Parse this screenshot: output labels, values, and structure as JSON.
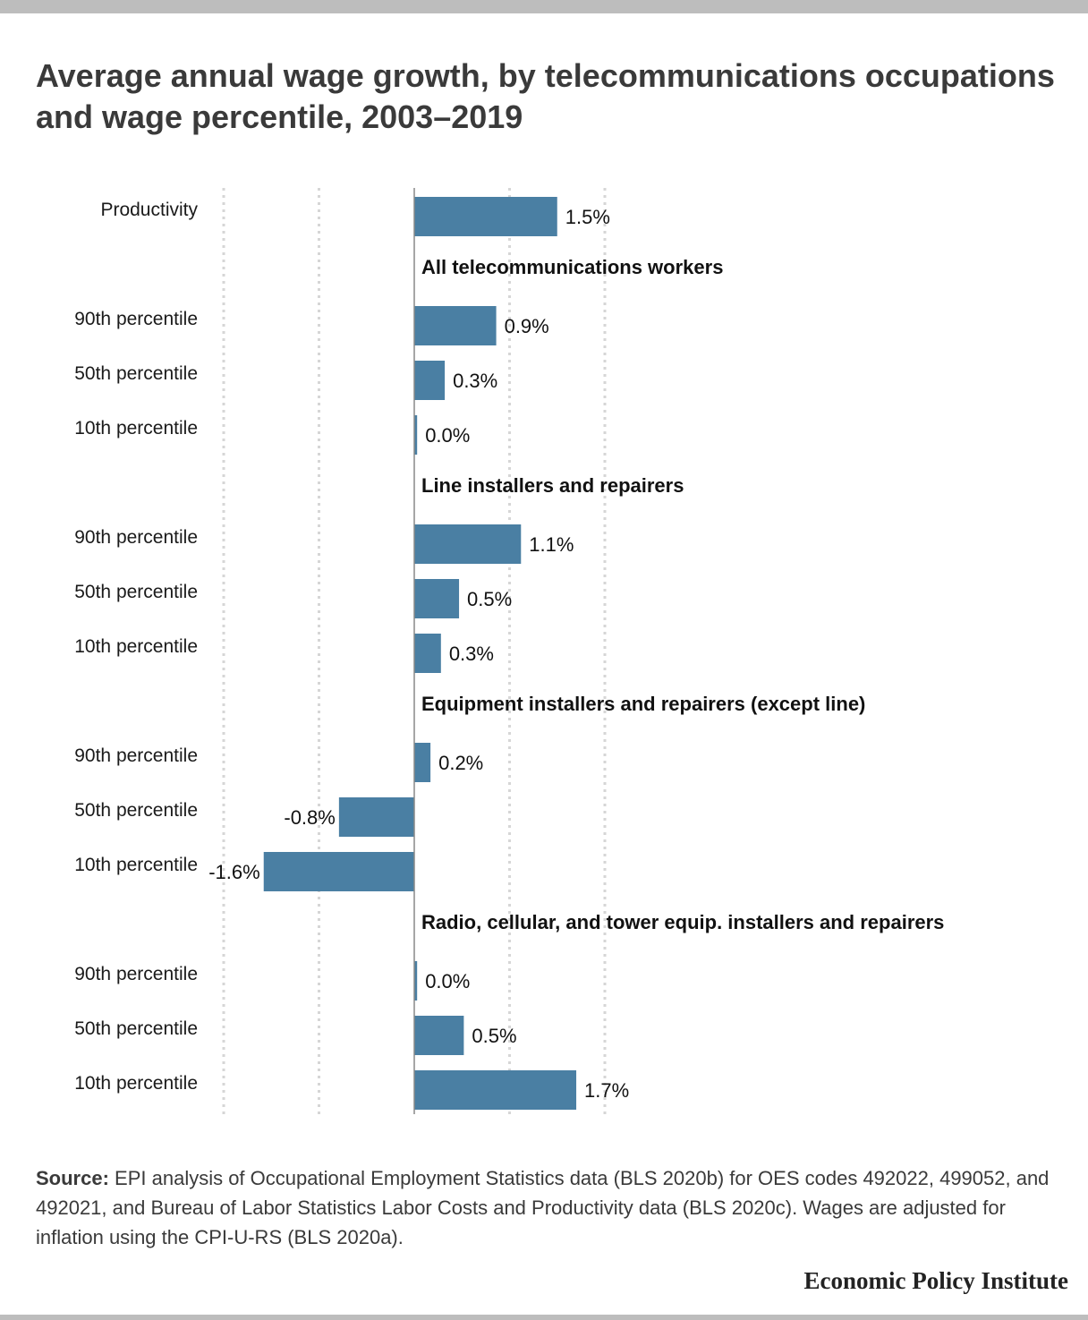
{
  "title": "Average annual wage growth, by telecommunications occupations and wage percentile, 2003–2019",
  "source": {
    "lead": "Source:",
    "text": " EPI analysis of Occupational Employment Statistics data (BLS 2020b) for OES codes 492022, 499052, and 492021, and Bureau of Labor Statistics Labor Costs and Productivity data (BLS 2020c). Wages are adjusted for inflation using the CPI-U-RS (BLS 2020a)."
  },
  "brand": "Economic Policy Institute",
  "colors": {
    "bar": "#4a7fa3",
    "grid": "#d6d6d6",
    "zero": "#888888",
    "frame": "#bdbdbd"
  },
  "chart_data": {
    "type": "bar",
    "orientation": "horizontal",
    "unit": "%",
    "xlim": [
      -2,
      2
    ],
    "grid": true,
    "grid_style": "dotted",
    "rows": [
      {
        "kind": "bar",
        "label": "Productivity",
        "value": 1.5,
        "value_label": "1.5%"
      },
      {
        "kind": "header",
        "label": "All telecommunications workers"
      },
      {
        "kind": "bar",
        "label": "90th percentile",
        "value": 0.86,
        "value_label": "0.9%"
      },
      {
        "kind": "bar",
        "label": "50th percentile",
        "value": 0.32,
        "value_label": "0.3%"
      },
      {
        "kind": "bar",
        "label": "10th percentile",
        "value": 0.03,
        "value_label": "0.0%"
      },
      {
        "kind": "header",
        "label": "Line installers and repairers"
      },
      {
        "kind": "bar",
        "label": "90th percentile",
        "value": 1.12,
        "value_label": "1.1%"
      },
      {
        "kind": "bar",
        "label": "50th percentile",
        "value": 0.47,
        "value_label": "0.5%"
      },
      {
        "kind": "bar",
        "label": "10th percentile",
        "value": 0.28,
        "value_label": "0.3%"
      },
      {
        "kind": "header",
        "label": "Equipment installers and repairers (except line)"
      },
      {
        "kind": "bar",
        "label": "90th percentile",
        "value": 0.17,
        "value_label": "0.2%"
      },
      {
        "kind": "bar",
        "label": "50th percentile",
        "value": -0.79,
        "value_label": "-0.8%"
      },
      {
        "kind": "bar",
        "label": "10th percentile",
        "value": -1.58,
        "value_label": "-1.6%"
      },
      {
        "kind": "header",
        "label": "Radio, cellular, and tower equip. installers and repairers"
      },
      {
        "kind": "bar",
        "label": "90th percentile",
        "value": 0.03,
        "value_label": "0.0%"
      },
      {
        "kind": "bar",
        "label": "50th percentile",
        "value": 0.52,
        "value_label": "0.5%"
      },
      {
        "kind": "bar",
        "label": "10th percentile",
        "value": 1.7,
        "value_label": "1.7%"
      }
    ]
  }
}
